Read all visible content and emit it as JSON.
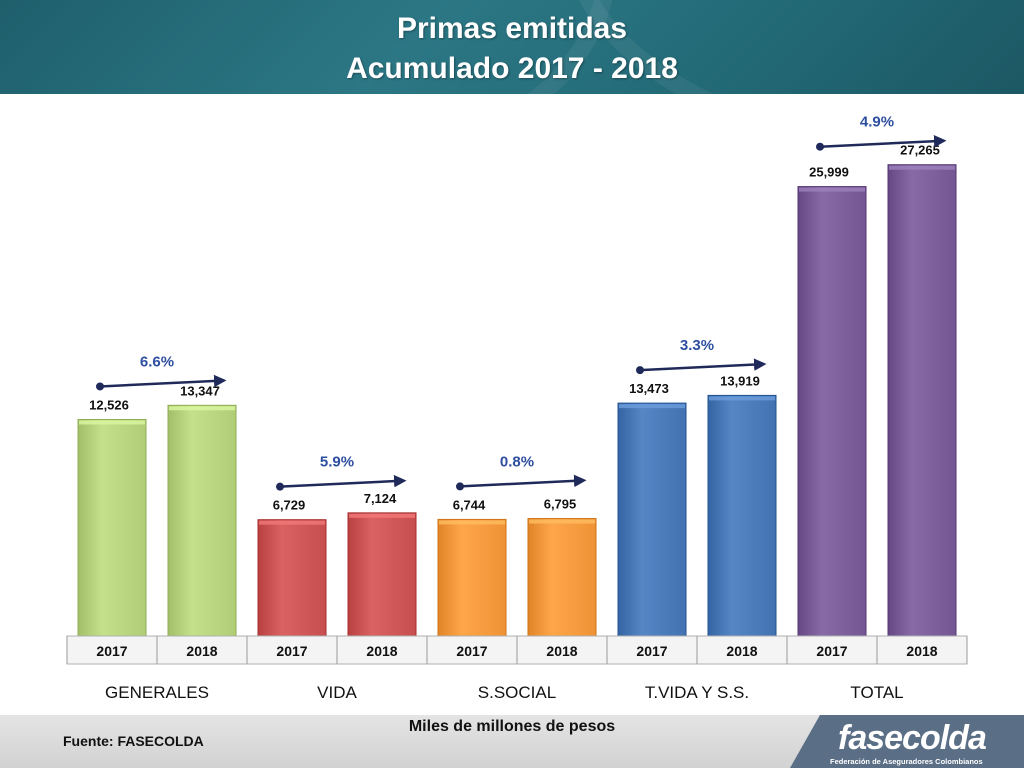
{
  "header": {
    "title_line1": "Primas emitidas",
    "title_line2": "Acumulado  2017 - 2018"
  },
  "footer": {
    "unit_label": "Miles de millones de pesos",
    "source": "Fuente: FASECOLDA",
    "logo_text": "fasecolda",
    "logo_subtext": "Federación de Aseguradores Colombianos"
  },
  "colors": {
    "header_bg": "#2c7785",
    "pct_text": "#2e4fa0",
    "arrow": "#1f2a5a"
  },
  "chart_data": {
    "type": "bar",
    "title": "Primas emitidas",
    "subtitle": "Acumulado  2017 - 2018",
    "ylabel": "",
    "xlabel": "Miles de millones de pesos",
    "ylim": [
      0,
      28000
    ],
    "grid": false,
    "groups": [
      {
        "name": "GENERALES",
        "color": "#b8d57e",
        "values": [
          12526,
          13347
        ],
        "labels": [
          "12,526",
          "13,347"
        ],
        "years": [
          "2017",
          "2018"
        ],
        "growth": "6.6%"
      },
      {
        "name": "VIDA",
        "color": "#cf5656",
        "values": [
          6729,
          7124
        ],
        "labels": [
          "6,729",
          "7,124"
        ],
        "years": [
          "2017",
          "2018"
        ],
        "growth": "5.9%"
      },
      {
        "name": "S.SOCIAL",
        "color": "#f79a3e",
        "values": [
          6744,
          6795
        ],
        "labels": [
          "6,744",
          "6,795"
        ],
        "years": [
          "2017",
          "2018"
        ],
        "growth": "0.8%"
      },
      {
        "name": "T.VIDA Y S.S.",
        "color": "#4a7ab9",
        "values": [
          13473,
          13919
        ],
        "labels": [
          "13,473",
          "13,919"
        ],
        "years": [
          "2017",
          "2018"
        ],
        "growth": "3.3%"
      },
      {
        "name": "TOTAL",
        "color": "#7b5e9a",
        "values": [
          25999,
          27265
        ],
        "labels": [
          "25,999",
          "27,265"
        ],
        "years": [
          "2017",
          "2018"
        ],
        "growth": "4.9%"
      }
    ]
  }
}
